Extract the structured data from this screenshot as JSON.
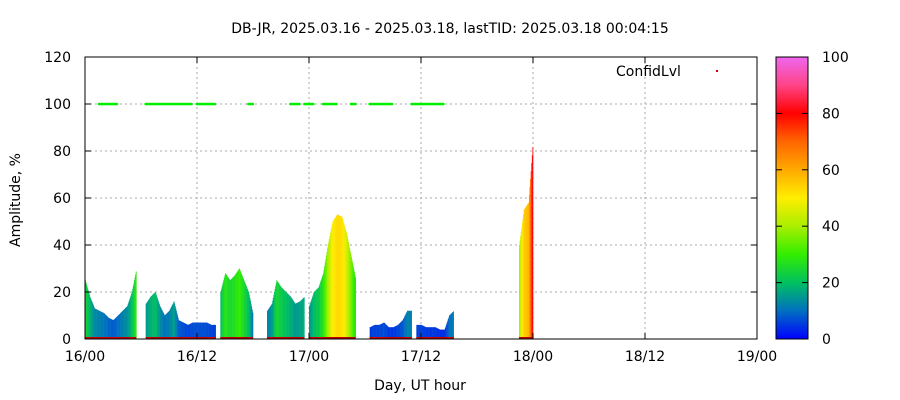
{
  "chart_data": {
    "type": "area",
    "title": "DB-JR, 2025.03.16 - 2025.03.18, lastTID: 2025.03.18 00:04:15",
    "xlabel": "Day, UT hour",
    "ylabel": "Amplitude, %",
    "xlim": [
      0,
      72
    ],
    "ylim": [
      0,
      120
    ],
    "x_unit": "hours since 16/00",
    "x_ticks": [
      {
        "x": 0,
        "label": "16/00"
      },
      {
        "x": 12,
        "label": "16/12"
      },
      {
        "x": 24,
        "label": "17/00"
      },
      {
        "x": 36,
        "label": "17/12"
      },
      {
        "x": 48,
        "label": "18/00"
      },
      {
        "x": 60,
        "label": "18/12"
      },
      {
        "x": 72,
        "label": "19/00"
      }
    ],
    "y_ticks": [
      0,
      20,
      40,
      60,
      80,
      100,
      120
    ],
    "grid": true,
    "legend": {
      "label": "ConfidLvl",
      "position": "top-right"
    },
    "colorbar": {
      "min": 0,
      "max": 100,
      "ticks": [
        0,
        20,
        40,
        60,
        80,
        100
      ]
    },
    "series": [
      {
        "name": "Amplitude",
        "segments": [
          {
            "x": [
              0,
              0.5,
              1,
              1.5,
              2,
              2.5,
              3,
              3.5,
              4,
              4.5,
              5,
              5.5
            ],
            "y": [
              25,
              18,
              13,
              12,
              11,
              9,
              8,
              10,
              12,
              14,
              20,
              30
            ]
          },
          {
            "x": [
              6.5,
              7,
              7.5,
              8,
              8.5,
              9,
              9.5,
              10,
              10.5,
              11,
              11.5,
              12,
              12.5,
              13,
              13.5,
              14
            ],
            "y": [
              15,
              18,
              20,
              14,
              10,
              12,
              16,
              8,
              7,
              6,
              7,
              7,
              7,
              7,
              6,
              6
            ]
          },
          {
            "x": [
              14.5,
              15,
              15.5,
              16,
              16.5,
              17,
              17.5,
              18
            ],
            "y": [
              20,
              28,
              25,
              27,
              30,
              25,
              20,
              10
            ]
          },
          {
            "x": [
              19.5,
              20,
              20.5,
              21,
              21.5,
              22,
              22.5,
              23,
              23.5
            ],
            "y": [
              12,
              15,
              25,
              22,
              20,
              18,
              15,
              16,
              18
            ]
          },
          {
            "x": [
              24,
              24.5,
              25,
              25.5,
              26,
              26.5,
              27,
              27.5,
              28,
              28.5,
              29
            ],
            "y": [
              14,
              20,
              22,
              28,
              40,
              50,
              53,
              52,
              45,
              35,
              25
            ]
          },
          {
            "x": [
              30.5,
              31,
              31.5,
              32,
              32.5,
              33,
              33.5,
              34,
              34.5,
              35
            ],
            "y": [
              5,
              6,
              6,
              7,
              5,
              5,
              6,
              8,
              12,
              12
            ]
          },
          {
            "x": [
              35.5,
              36,
              36.5,
              37,
              37.5,
              38,
              38.5,
              39,
              39.5
            ],
            "y": [
              6,
              6,
              5,
              5,
              5,
              4,
              4,
              10,
              12
            ]
          },
          {
            "x": [
              46.5,
              47,
              47.5,
              48
            ],
            "y": [
              40,
              55,
              58,
              85
            ]
          }
        ]
      },
      {
        "name": "ConfidLvl",
        "type": "scatter",
        "color": "#00ee00",
        "y": 100,
        "x_ranges": [
          [
            1.5,
            3.5
          ],
          [
            6.5,
            11.5
          ],
          [
            12,
            14
          ],
          [
            17.5,
            18
          ],
          [
            22,
            23
          ],
          [
            23.5,
            24.5
          ],
          [
            25.5,
            27
          ],
          [
            28.5,
            29
          ],
          [
            30.5,
            33
          ],
          [
            35,
            36
          ],
          [
            36,
            38.5
          ]
        ]
      }
    ]
  }
}
